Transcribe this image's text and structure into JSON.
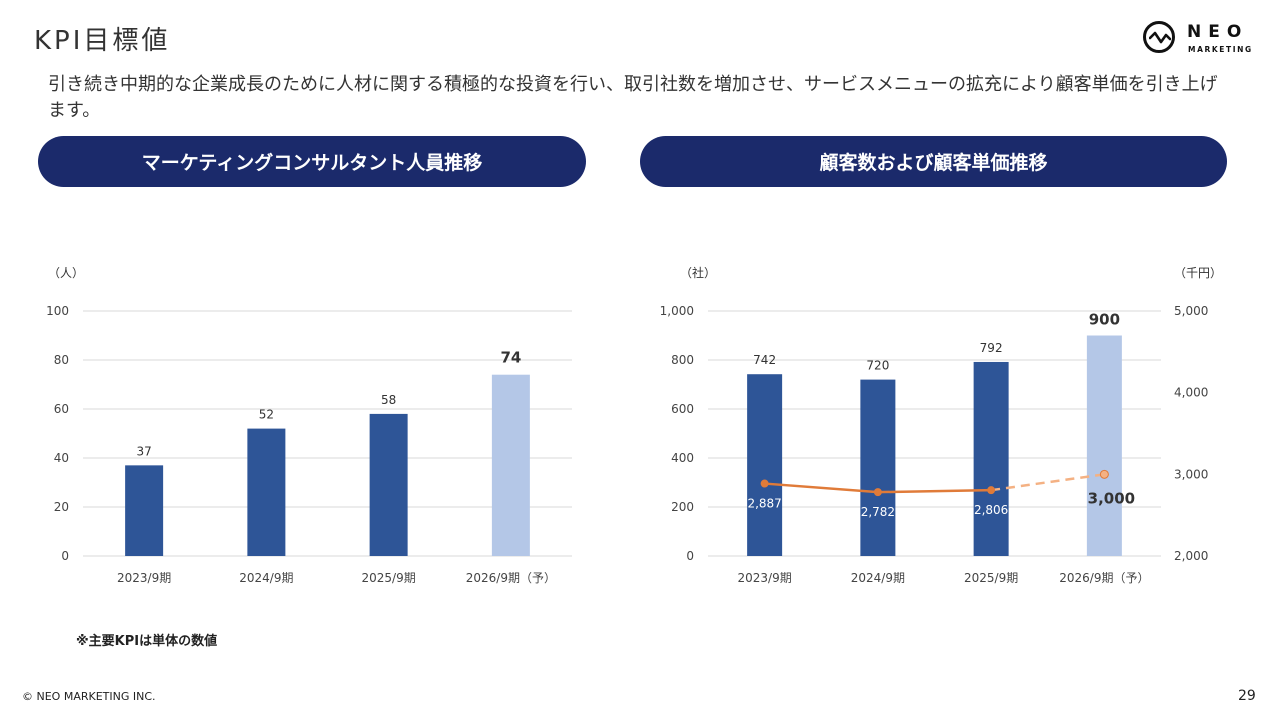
{
  "title": "KPI目標値",
  "logo": {
    "name": "NEO",
    "sub": "MARKETING"
  },
  "lead": "引き続き中期的な企業成長のために人材に関する積極的な投資を行い、取引社数を増加させ、サービスメニューの拡充により顧客単価を引き上げます。",
  "panels": {
    "left_title": "マーケティングコンサルタント人員推移",
    "right_title": "顧客数および顧客単価推移"
  },
  "note": "※主要KPIは単体の数値",
  "copyright": "© NEO MARKETING INC.",
  "page_number": "29",
  "colors": {
    "navy": "#1b2a6b",
    "bar": "#2e5597",
    "bar_forecast": "#b4c7e7",
    "line": "#e07b39",
    "line_forecast": "#f4b183"
  },
  "chart_data": [
    {
      "type": "bar",
      "unit_label": "（人）",
      "categories": [
        "2023/9期",
        "2024/9期",
        "2025/9期",
        "2026/9期（予）"
      ],
      "values": [
        37,
        52,
        58,
        74
      ],
      "data_labels": [
        "37",
        "52",
        "58",
        "74"
      ],
      "forecast_index": 3,
      "ylim": [
        0,
        100
      ],
      "yticks": [
        "0",
        "20",
        "40",
        "60",
        "80",
        "100"
      ],
      "grid": true
    },
    {
      "type": "bar+line",
      "left_unit_label": "（社）",
      "right_unit_label": "（千円）",
      "categories": [
        "2023/9期",
        "2024/9期",
        "2025/9期",
        "2026/9期（予）"
      ],
      "bar_values": [
        742,
        720,
        792,
        900
      ],
      "bar_labels": [
        "742",
        "720",
        "792",
        "900"
      ],
      "line_values": [
        2887,
        2782,
        2806,
        3000
      ],
      "line_labels": [
        "2,887",
        "2,782",
        "2,806",
        "3,000"
      ],
      "forecast_index": 3,
      "ylim_left": [
        0,
        1000
      ],
      "yticks_left": [
        "0",
        "200",
        "400",
        "600",
        "800",
        "1,000"
      ],
      "ylim_right": [
        2000,
        5000
      ],
      "yticks_right": [
        "2,000",
        "3,000",
        "4,000",
        "5,000"
      ],
      "grid": true
    }
  ]
}
